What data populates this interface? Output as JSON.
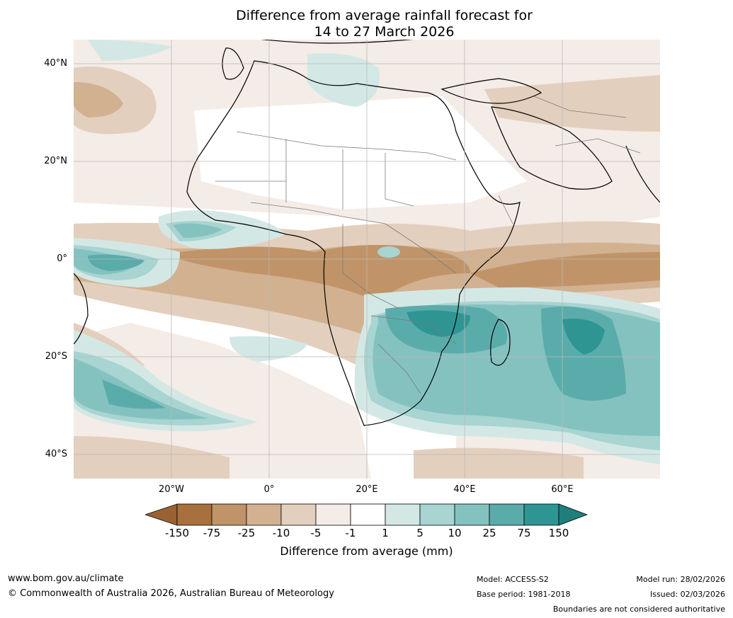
{
  "title": {
    "line1": "Difference from average rainfall forecast for",
    "line2": "14 to 27 March 2026"
  },
  "axes": {
    "lat_labels": [
      "40°N",
      "20°N",
      "0°",
      "20°S",
      "40°S"
    ],
    "lon_labels": [
      "20°W",
      "0°",
      "20°E",
      "40°E",
      "60°E"
    ]
  },
  "colorbar": {
    "ticks": [
      "-150",
      "-75",
      "-25",
      "-10",
      "-5",
      "-1",
      "1",
      "5",
      "10",
      "25",
      "75",
      "150"
    ],
    "label": "Difference from average (mm)",
    "colors": {
      "extend_dry": "#9a6232",
      "dry_5": "#a8703c",
      "dry_4": "#c09468",
      "dry_3": "#d2b190",
      "dry_2": "#e3cfbd",
      "dry_1": "#f4ece6",
      "neutral": "#ffffff",
      "wet_1": "#d3e8e5",
      "wet_2": "#a8d4d1",
      "wet_3": "#84c2c0",
      "wet_4": "#5aacab",
      "wet_5": "#2f9593",
      "extend_wet": "#1f7f7c"
    }
  },
  "footer": {
    "website": "www.bom.gov.au/climate",
    "copyright": "© Commonwealth of Australia 2026, Australian Bureau of Meteorology",
    "model": "Model: ACCESS-S2",
    "base_period": "Base period: 1981-2018",
    "model_run": "Model run: 28/02/2026",
    "issued": "Issued: 02/03/2026",
    "disclaimer": "Boundaries are not considered authoritative"
  }
}
